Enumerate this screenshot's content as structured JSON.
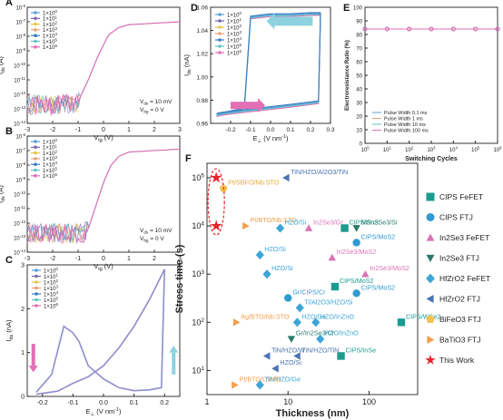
{
  "chart_data": [
    {
      "panel": "A",
      "type": "line",
      "xlabel": "V_tg (V)",
      "ylabel": "I_ds (A)",
      "xlim": [
        -3,
        3
      ],
      "ylog": true,
      "ylim_exp": [
        -14,
        -6
      ],
      "x_ticks": [
        "-3",
        "-2",
        "-1",
        "0",
        "1",
        "2",
        "3"
      ],
      "y_ticks": [
        "10^-14",
        "10^-13",
        "10^-12",
        "10^-11",
        "10^-10",
        "10^-9",
        "10^-8",
        "10^-7",
        "10^-6"
      ],
      "legend": [
        "1×10^0",
        "1×10^1",
        "1×10^2",
        "1×10^3",
        "1×10^4",
        "1×10^5",
        "1×10^6"
      ],
      "annotations": [
        "V_ds = 10 mV",
        "V_bg = 0 V"
      ],
      "curve": {
        "x": [
          -3,
          -1.2,
          -1.0,
          -0.6,
          -0.2,
          0.2,
          0.6,
          1.0,
          2.0,
          3.0
        ],
        "log_y": [
          -12.7,
          -12.7,
          -12.5,
          -11.0,
          -9.3,
          -7.9,
          -7.4,
          -7.2,
          -7.1,
          -7.0
        ]
      }
    },
    {
      "panel": "B",
      "type": "line",
      "xlabel": "V_tg (V)",
      "ylabel": "I_ds (A)",
      "xlim": [
        -3,
        3
      ],
      "ylog": true,
      "ylim_exp": [
        -14,
        -6
      ],
      "x_ticks": [
        "-3",
        "-2",
        "-1",
        "0",
        "1",
        "2",
        "3"
      ],
      "y_ticks": [
        "10^-14",
        "10^-13",
        "10^-12",
        "10^-11",
        "10^-10",
        "10^-9",
        "10^-8",
        "10^-7",
        "10^-6"
      ],
      "legend": [
        "1×10^0",
        "1×10^1",
        "1×10^2",
        "1×10^3",
        "1×10^4",
        "1×10^5",
        "1×10^6"
      ],
      "annotations": [
        "V_ds = 10 mV",
        "V_bg = 0 V"
      ],
      "curve": {
        "x": [
          -3,
          -0.8,
          -0.6,
          -0.3,
          0,
          0.3,
          0.6,
          1.0,
          2.0,
          3.0
        ],
        "log_y": [
          -12.7,
          -12.7,
          -12.4,
          -10.8,
          -9.2,
          -8.0,
          -7.4,
          -7.1,
          -7.0,
          -6.9
        ]
      }
    },
    {
      "panel": "C",
      "type": "line",
      "xlabel": "E_⊥ (V nm^-1)",
      "ylabel": "I_ds (nA)",
      "xlim": [
        -0.25,
        0.25
      ],
      "ylim": [
        0,
        3
      ],
      "x_ticks": [
        "-0.2",
        "-0.1",
        "0.0",
        "0.1",
        "0.2"
      ],
      "y_ticks": [
        "0",
        "1",
        "2",
        "3"
      ],
      "legend": [
        "1×10^0",
        "1×10^1",
        "1×10^2",
        "1×10^3",
        "1×10^4",
        "1×10^5",
        "1×10^6"
      ],
      "forward": {
        "x": [
          -0.22,
          -0.15,
          -0.1,
          -0.05,
          0,
          0.05,
          0.1,
          0.15,
          0.2
        ],
        "y": [
          0.05,
          0.12,
          0.3,
          0.45,
          0.7,
          1.1,
          1.6,
          2.2,
          2.9
        ]
      },
      "backward": {
        "x": [
          0.2,
          0.19,
          0.15,
          0.1,
          0.05,
          0,
          -0.05,
          -0.08,
          -0.1,
          -0.13,
          -0.17,
          -0.22
        ],
        "y": [
          2.9,
          0.2,
          0.15,
          0.13,
          0.2,
          0.4,
          0.7,
          1.25,
          1.45,
          1.6,
          0.5,
          0.1
        ]
      }
    },
    {
      "panel": "D",
      "type": "line",
      "xlabel": "E_⊥ (V nm^-1)",
      "ylabel": "I_ds (nA)",
      "xlim": [
        -0.3,
        0.3
      ],
      "ylim": [
        0.96,
        1.06
      ],
      "x_ticks": [
        "-0.2",
        "-0.1",
        "0.0",
        "0.1",
        "0.2",
        "0.3"
      ],
      "y_ticks": [
        "0.96",
        "0.98",
        "1.00",
        "1.02",
        "1.04",
        "1.06"
      ],
      "legend": [
        "1×10^0",
        "1×10^1",
        "1×10^2",
        "1×10^3",
        "1×10^4",
        "1×10^5",
        "1×10^6"
      ],
      "upper": {
        "x": [
          -0.27,
          -0.15,
          -0.13,
          -0.1,
          0,
          0.1,
          0.2,
          0.25
        ],
        "y": [
          0.966,
          0.97,
          0.975,
          1.05,
          1.052,
          1.052,
          1.053,
          1.053
        ]
      },
      "lower": {
        "x": [
          0.25,
          0.24,
          0.15,
          0.05,
          -0.05,
          -0.15,
          -0.25,
          -0.27
        ],
        "y": [
          1.053,
          0.977,
          0.975,
          0.973,
          0.971,
          0.969,
          0.967,
          0.966
        ]
      }
    },
    {
      "panel": "E",
      "type": "line",
      "xlabel": "Switching Cycles",
      "ylabel": "Electroresistance Ratio (%)",
      "xlim_exp": [
        0,
        6
      ],
      "ylim": [
        0,
        100
      ],
      "x_ticks": [
        "10^0",
        "10^1",
        "10^2",
        "10^3",
        "10^4",
        "10^5",
        "10^6"
      ],
      "y_ticks": [
        "0",
        "10",
        "20",
        "30",
        "40",
        "50",
        "60",
        "70",
        "80",
        "90",
        "100"
      ],
      "legend": [
        "Pulse Width 0.1 ms",
        "Pulse Width 1 ms",
        "Pulse Width 10 ms",
        "Pulse Width 100 ms"
      ],
      "series_exp": [
        0,
        1,
        2,
        3,
        4,
        5,
        6
      ],
      "values": [
        84,
        84,
        84,
        84,
        84,
        84,
        84
      ]
    },
    {
      "panel": "F",
      "type": "scatter",
      "xlabel": "Thickness (nm)",
      "ylabel": "Stress time (s)",
      "xlog": true,
      "ylog": true,
      "xlim_exp": [
        0,
        2.6
      ],
      "ylim_exp": [
        0.5,
        5.3
      ],
      "x_ticks": [
        "1",
        "10",
        "100"
      ],
      "y_ticks": [
        "10^1",
        "10^2",
        "10^3",
        "10^4",
        "10^5"
      ],
      "legend": [
        "CIPS FeFET",
        "CIPS FTJ",
        "In2Se3 FeFET",
        "In2Se3 FTJ",
        "HfZrO2 FeFET",
        "HfZrO2 FTJ",
        "BiFeO3 FTJ",
        "BaTiO3 FTJ",
        "This Work"
      ],
      "points": [
        {
          "label": "TiN/HZO/Al2O3/TiN",
          "x": 9.5,
          "y": 100000,
          "series": "HfZrO2 FTJ"
        },
        {
          "label": "Pt/SBFO/Nb:STO",
          "x": 1.6,
          "y": 60000,
          "series": "BiFeO3 FTJ"
        },
        {
          "label": "Pt/BTO/Nb:STO",
          "x": 3,
          "y": 10000,
          "series": "BaTiO3 FTJ"
        },
        {
          "label": "HZO/Si",
          "x": 8,
          "y": 9000,
          "series": "HfZrO2 FeFET"
        },
        {
          "label": "In2Se3/Gr",
          "x": 18,
          "y": 9000,
          "series": "In2Se3 FeFET"
        },
        {
          "label": "CIPS/SnS",
          "x": 50,
          "y": 9000,
          "series": "CIPS FeFET"
        },
        {
          "label": "Ni/In2Se3/Si",
          "x": 70,
          "y": 9000,
          "series": "In2Se3 FTJ"
        },
        {
          "label": "CIPS/MoS2",
          "x": 70,
          "y": 4500,
          "series": "CIPS FTJ"
        },
        {
          "label": "In2Se3/MoS2",
          "x": 35,
          "y": 2200,
          "series": "In2Se3 FeFET"
        },
        {
          "label": "HZO/Si",
          "x": 4.5,
          "y": 2500,
          "series": "HfZrO2 FeFET"
        },
        {
          "label": "HZO/Si",
          "x": 5.5,
          "y": 1000,
          "series": "HfZrO2 FeFET"
        },
        {
          "label": "In2Se3/MoS2",
          "x": 90,
          "y": 1000,
          "series": "In2Se3 FeFET"
        },
        {
          "label": "CIPS/MoS2",
          "x": 38,
          "y": 550,
          "series": "CIPS FeFET"
        },
        {
          "label": "CIPS/MoS2",
          "x": 70,
          "y": 400,
          "series": "CIPS FTJ"
        },
        {
          "label": "Gr/CIPS/Cr",
          "x": 10,
          "y": 320,
          "series": "CIPS FTJ"
        },
        {
          "label": "Ti/Al2O3/HZO/Si",
          "x": 14,
          "y": 200,
          "series": "HfZrO2 FeFET"
        },
        {
          "label": "Ag/BTO/Nb:STO",
          "x": 2.3,
          "y": 100,
          "series": "BaTiO3 FTJ"
        },
        {
          "label": "HZO/Ge",
          "x": 13,
          "y": 100,
          "series": "HfZrO2 FeFET"
        },
        {
          "label": "HZO/InZnO",
          "x": 22,
          "y": 100,
          "series": "HfZrO2 FeFET"
        },
        {
          "label": "CIPS/WSe2",
          "x": 250,
          "y": 100,
          "series": "CIPS FeFET"
        },
        {
          "label": "Gr/In2Se3/Cr",
          "x": 11,
          "y": 45,
          "series": "In2Se3 FTJ"
        },
        {
          "label": "HZO/InZnO",
          "x": 25,
          "y": 45,
          "series": "HfZrO2 FeFET"
        },
        {
          "label": "TiN/HZO/W",
          "x": 5.5,
          "y": 20,
          "series": "HfZrO2 FTJ"
        },
        {
          "label": "TiN/HZO/TiN",
          "x": 13,
          "y": 20,
          "series": "HfZrO2 FTJ"
        },
        {
          "label": "CIPS/InSe",
          "x": 45,
          "y": 20,
          "series": "CIPS FeFET"
        },
        {
          "label": "HZO/Si",
          "x": 7,
          "y": 11,
          "series": "HfZrO2 FTJ"
        },
        {
          "label": "Pt/BTO/LSMO",
          "x": 2.2,
          "y": 5,
          "series": "BaTiO3 FTJ"
        },
        {
          "label": "TiN/HZO/Ge",
          "x": 4.5,
          "y": 5,
          "series": "HfZrO2 FeFET"
        },
        {
          "label": "",
          "x": 1.3,
          "y": 100000,
          "series": "This Work"
        },
        {
          "label": "",
          "x": 1.3,
          "y": 10000,
          "series": "This Work"
        }
      ]
    }
  ]
}
